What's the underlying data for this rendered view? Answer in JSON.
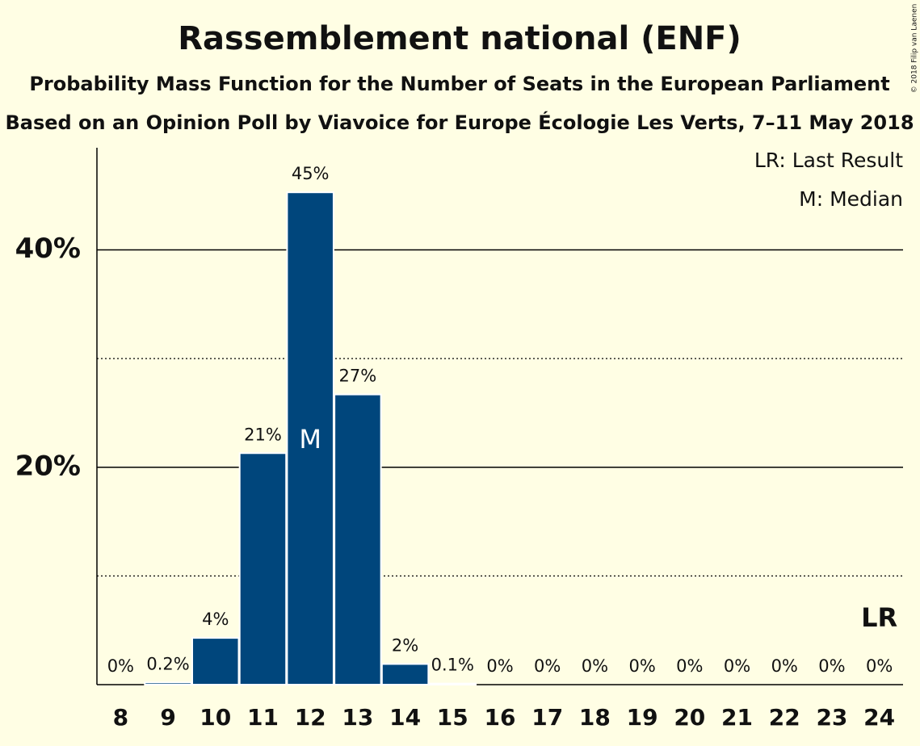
{
  "chart_data": {
    "type": "bar",
    "title": "Rassemblement national (ENF)",
    "subtitle": "Probability Mass Function for the Number of Seats in the European Parliament",
    "subtitle2": "Based on an Opinion Poll by Viavoice for Europe Écologie Les Verts, 7–11 May 2018",
    "copyright": "© 2018 Filip van Laenen",
    "categories": [
      "8",
      "9",
      "10",
      "11",
      "12",
      "13",
      "14",
      "15",
      "16",
      "17",
      "18",
      "19",
      "20",
      "21",
      "22",
      "23",
      "24"
    ],
    "values": [
      0,
      0.2,
      4.3,
      21.3,
      45.3,
      26.7,
      1.9,
      0.1,
      0,
      0,
      0,
      0,
      0,
      0,
      0,
      0,
      0
    ],
    "value_labels": [
      "0%",
      "0.2%",
      "4%",
      "21%",
      "45%",
      "27%",
      "2%",
      "0.1%",
      "0%",
      "0%",
      "0%",
      "0%",
      "0%",
      "0%",
      "0%",
      "0%",
      "0%"
    ],
    "color": "#00467c",
    "ylim": [
      0,
      49.4
    ],
    "yticks": [
      {
        "value": 20,
        "label": "20%"
      },
      {
        "value": 40,
        "label": "40%"
      }
    ],
    "minor_yticks": [
      10,
      30
    ],
    "grid": true,
    "legend": [
      "LR: Last Result",
      "M: Median"
    ],
    "median": {
      "label": "M",
      "category": "12"
    },
    "last_result": {
      "label": "LR",
      "category": "24"
    }
  }
}
